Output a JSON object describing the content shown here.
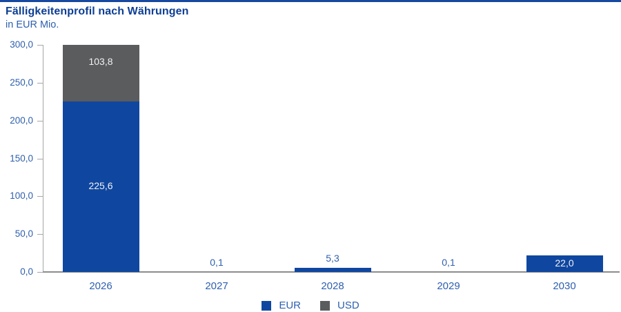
{
  "page": {
    "top_rule_color": "#17489f"
  },
  "chart_data": {
    "type": "bar",
    "stacked": true,
    "title": "Fälligkeitenprofil nach Währungen",
    "subtitle": "in EUR Mio.",
    "categories": [
      "2026",
      "2027",
      "2028",
      "2029",
      "2030"
    ],
    "series": [
      {
        "name": "EUR",
        "color": "#0f47a0",
        "values": [
          225.6,
          0.1,
          5.3,
          0.1,
          22.0
        ],
        "labels": [
          "225,6",
          "0,1",
          "5,3",
          "0,1",
          "22,0"
        ]
      },
      {
        "name": "USD",
        "color": "#5a5c5e",
        "values": [
          103.8,
          0,
          0,
          0,
          0
        ],
        "labels": [
          "103,8",
          null,
          null,
          null,
          null
        ]
      }
    ],
    "ylim": [
      0,
      300
    ],
    "ytick_values": [
      300,
      250,
      200,
      150,
      100,
      50,
      0
    ],
    "ytick_labels": [
      "300,0",
      "250,0",
      "200,0",
      "150,0",
      "100,0",
      "50,0",
      "0,0"
    ],
    "xlabel": "",
    "ylabel": "",
    "grid": false,
    "clip_stack_at_ymax": true,
    "legend_position": "bottom",
    "label_colors": {
      "inside": "#f2f2f2",
      "outside": "#2e5fae"
    },
    "axis_label_color": "#2e5fae"
  }
}
